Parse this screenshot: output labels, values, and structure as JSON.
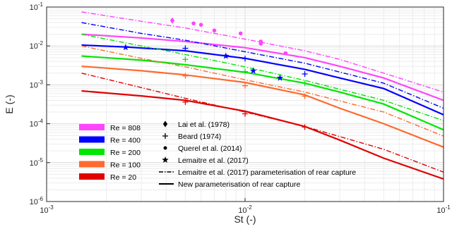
{
  "chart_data": {
    "type": "line",
    "xlabel": "St (-)",
    "ylabel": "E (-)",
    "xscale": "log",
    "yscale": "log",
    "xlim": [
      0.001,
      0.1
    ],
    "ylim": [
      1e-06,
      0.1
    ],
    "grid": true,
    "x_ticks": [
      {
        "value": 0.001,
        "base": "10",
        "exp": "-3"
      },
      {
        "value": 0.01,
        "base": "10",
        "exp": "-2"
      },
      {
        "value": 0.1,
        "base": "10",
        "exp": "-1"
      }
    ],
    "y_ticks": [
      {
        "value": 1e-06,
        "base": "10",
        "exp": "-6"
      },
      {
        "value": 1e-05,
        "base": "10",
        "exp": "-5"
      },
      {
        "value": 0.0001,
        "base": "10",
        "exp": "-4"
      },
      {
        "value": 0.001,
        "base": "10",
        "exp": "-3"
      },
      {
        "value": 0.01,
        "base": "10",
        "exp": "-2"
      },
      {
        "value": 0.1,
        "base": "10",
        "exp": "-1"
      }
    ],
    "reynolds_series": [
      {
        "name": "Re = 808",
        "color": "#ff44ff",
        "new_param": [
          [
            0.0015,
            0.02
          ],
          [
            0.003,
            0.016
          ],
          [
            0.005,
            0.013
          ],
          [
            0.01,
            0.009
          ],
          [
            0.02,
            0.005
          ],
          [
            0.03,
            0.003
          ],
          [
            0.05,
            0.0015
          ],
          [
            0.1,
            0.0004
          ]
        ],
        "lemaitre_param": [
          [
            0.0015,
            0.075
          ],
          [
            0.003,
            0.043
          ],
          [
            0.005,
            0.029
          ],
          [
            0.01,
            0.015
          ],
          [
            0.02,
            0.0075
          ],
          [
            0.03,
            0.0045
          ],
          [
            0.05,
            0.002
          ],
          [
            0.1,
            0.00065
          ]
        ],
        "points_lai": [
          [
            0.0043,
            0.045
          ]
        ],
        "points_querel": [
          [
            0.0055,
            0.038
          ],
          [
            0.006,
            0.035
          ],
          [
            0.007,
            0.025
          ],
          [
            0.0095,
            0.021
          ],
          [
            0.012,
            0.013
          ],
          [
            0.012,
            0.0115
          ],
          [
            0.016,
            0.0065
          ]
        ],
        "points_beard": [],
        "points_lemaitre": []
      },
      {
        "name": "Re = 400",
        "color": "#0000ff",
        "new_param": [
          [
            0.0015,
            0.0105
          ],
          [
            0.0025,
            0.0094
          ],
          [
            0.005,
            0.0075
          ],
          [
            0.01,
            0.0048
          ],
          [
            0.02,
            0.0025
          ],
          [
            0.03,
            0.0015
          ],
          [
            0.05,
            0.0008
          ],
          [
            0.1,
            0.00017
          ]
        ],
        "lemaitre_param": [
          [
            0.0015,
            0.04
          ],
          [
            0.003,
            0.021
          ],
          [
            0.005,
            0.014
          ],
          [
            0.01,
            0.0071
          ],
          [
            0.02,
            0.0036
          ],
          [
            0.05,
            0.0011
          ],
          [
            0.1,
            0.00025
          ]
        ],
        "points_lai": [],
        "points_querel": [],
        "points_beard": [
          [
            0.005,
            0.0087
          ],
          [
            0.01,
            0.0047
          ],
          [
            0.02,
            0.0019
          ]
        ],
        "points_lemaitre": [
          [
            0.0025,
            0.0092
          ],
          [
            0.008,
            0.0055
          ],
          [
            0.011,
            0.0023
          ],
          [
            0.015,
            0.0015
          ]
        ]
      },
      {
        "name": "Re = 200",
        "color": "#00e600",
        "new_param": [
          [
            0.0015,
            0.0055
          ],
          [
            0.003,
            0.0043
          ],
          [
            0.005,
            0.0033
          ],
          [
            0.01,
            0.0021
          ],
          [
            0.02,
            0.0011
          ],
          [
            0.03,
            0.00065
          ],
          [
            0.05,
            0.00032
          ],
          [
            0.1,
            7e-05
          ]
        ],
        "lemaitre_param": [
          [
            0.0015,
            0.02
          ],
          [
            0.003,
            0.01
          ],
          [
            0.005,
            0.006
          ],
          [
            0.01,
            0.0029
          ],
          [
            0.02,
            0.0013
          ],
          [
            0.05,
            0.0004
          ],
          [
            0.1,
            0.00012
          ]
        ],
        "points_lai": [],
        "points_querel": [],
        "points_beard": [
          [
            0.005,
            0.0045
          ],
          [
            0.01,
            0.0022
          ],
          [
            0.02,
            0.0011
          ]
        ],
        "points_lemaitre": []
      },
      {
        "name": "Re = 100",
        "color": "#ff6a2e",
        "new_param": [
          [
            0.0015,
            0.003
          ],
          [
            0.003,
            0.0023
          ],
          [
            0.005,
            0.0018
          ],
          [
            0.01,
            0.00115
          ],
          [
            0.02,
            0.00055
          ],
          [
            0.03,
            0.00025
          ],
          [
            0.05,
            0.0001
          ],
          [
            0.1,
            2.5e-05
          ]
        ],
        "lemaitre_param": [
          [
            0.0015,
            0.01
          ],
          [
            0.003,
            0.0048
          ],
          [
            0.005,
            0.0029
          ],
          [
            0.01,
            0.00135
          ],
          [
            0.02,
            0.00065
          ],
          [
            0.05,
            0.0002
          ],
          [
            0.1,
            4.8e-05
          ]
        ],
        "points_lai": [],
        "points_querel": [],
        "points_beard": [
          [
            0.005,
            0.0017
          ],
          [
            0.01,
            0.00095
          ],
          [
            0.02,
            0.00051
          ]
        ],
        "points_lemaitre": []
      },
      {
        "name": "Re = 20",
        "color": "#e00000",
        "new_param": [
          [
            0.0015,
            0.0007
          ],
          [
            0.003,
            0.00052
          ],
          [
            0.005,
            0.0004
          ],
          [
            0.01,
            0.00021
          ],
          [
            0.02,
            8.5e-05
          ],
          [
            0.03,
            3.8e-05
          ],
          [
            0.05,
            1.3e-05
          ],
          [
            0.1,
            3.8e-06
          ]
        ],
        "lemaitre_param": [
          [
            0.0015,
            0.002
          ],
          [
            0.003,
            0.00085
          ],
          [
            0.005,
            0.00045
          ],
          [
            0.01,
            0.0002
          ],
          [
            0.02,
            8.5e-05
          ],
          [
            0.05,
            2.2e-05
          ],
          [
            0.1,
            5.7e-06
          ]
        ],
        "points_lai": [],
        "points_querel": [],
        "points_beard": [
          [
            0.005,
            0.00036
          ],
          [
            0.01,
            0.00018
          ],
          [
            0.02,
            8.2e-05
          ]
        ],
        "points_lemaitre": []
      }
    ],
    "legend": {
      "placement": "bottom-left",
      "colors": [
        {
          "label": "Re = 808",
          "color": "#ff44ff"
        },
        {
          "label": "Re = 400",
          "color": "#0000ff"
        },
        {
          "label": "Re = 200",
          "color": "#00e600"
        },
        {
          "label": "Re = 100",
          "color": "#ff6a2e"
        },
        {
          "label": "Re = 20",
          "color": "#e00000"
        }
      ],
      "markers": [
        {
          "label": "Lai et al. (1978)",
          "marker": "diamond"
        },
        {
          "label": "Beard (1974)",
          "marker": "plus"
        },
        {
          "label": "Querel et al. (2014)",
          "marker": "dot"
        },
        {
          "label": "Lemaitre et al. (2017)",
          "marker": "star"
        },
        {
          "label": "Lemaitre et al. (2017) parameterisation of rear capture",
          "marker": "dashdot-line"
        },
        {
          "label": "New parameterisation of rear capture",
          "marker": "solid-line"
        }
      ]
    }
  }
}
